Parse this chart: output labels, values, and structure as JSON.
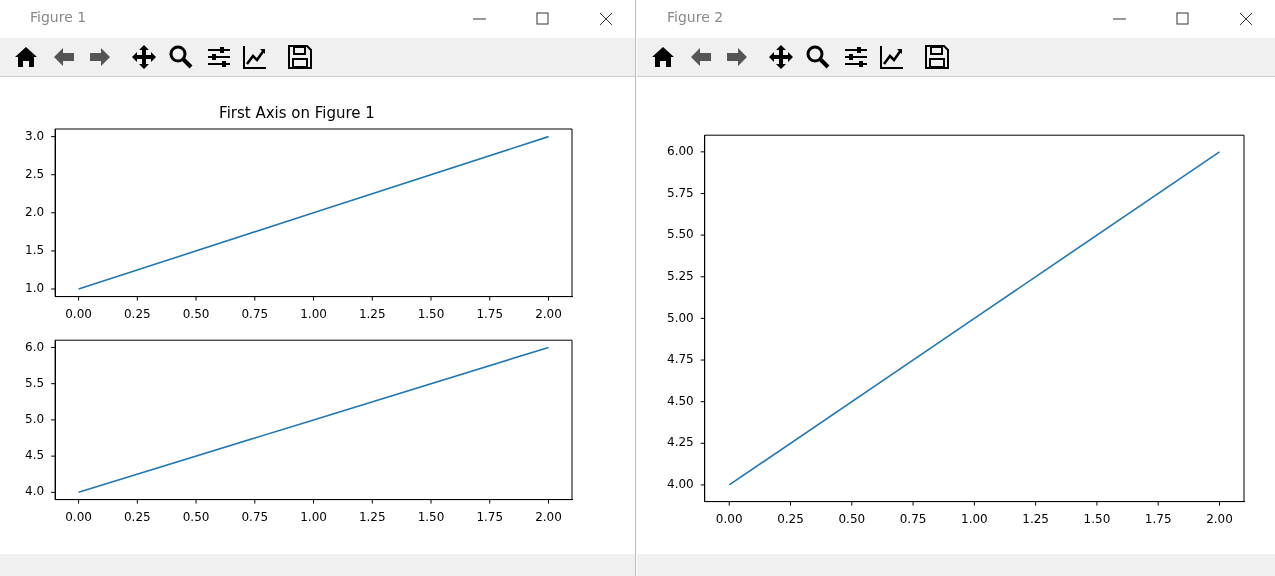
{
  "chart_data": [
    {
      "type": "line",
      "title": "First Axis on Figure 1",
      "annotations": [
        "Figure 1"
      ],
      "x": [
        0,
        1,
        2
      ],
      "series": [
        {
          "color": "#1f77b4",
          "values": [
            1,
            2,
            3
          ]
        }
      ],
      "xlim": [
        -0.1,
        2.1
      ],
      "xticks": [
        {
          "value": 0,
          "label": "0.00"
        },
        {
          "value": 0.25,
          "label": "0.25"
        },
        {
          "value": 0.5,
          "label": "0.50"
        },
        {
          "value": 0.75,
          "label": "0.75"
        },
        {
          "value": 1,
          "label": "1.00"
        },
        {
          "value": 1.25,
          "label": "1.25"
        },
        {
          "value": 1.5,
          "label": "1.50"
        },
        {
          "value": 1.75,
          "label": "1.75"
        },
        {
          "value": 2,
          "label": "2.00"
        }
      ],
      "ylim": [
        0.9,
        3.1
      ],
      "yticks": [
        {
          "value": 1,
          "label": "1.0"
        },
        {
          "value": 1.5,
          "label": "1.5"
        },
        {
          "value": 2,
          "label": "2.0"
        },
        {
          "value": 2.5,
          "label": "2.5"
        },
        {
          "value": 3,
          "label": "3.0"
        }
      ]
    },
    {
      "type": "line",
      "x": [
        0,
        1,
        2
      ],
      "series": [
        {
          "color": "#1f77b4",
          "values": [
            4,
            5,
            6
          ]
        }
      ],
      "xlim": [
        -0.1,
        2.1
      ],
      "xticks": [
        {
          "value": 0,
          "label": "0.00"
        },
        {
          "value": 0.25,
          "label": "0.25"
        },
        {
          "value": 0.5,
          "label": "0.50"
        },
        {
          "value": 0.75,
          "label": "0.75"
        },
        {
          "value": 1,
          "label": "1.00"
        },
        {
          "value": 1.25,
          "label": "1.25"
        },
        {
          "value": 1.5,
          "label": "1.50"
        },
        {
          "value": 1.75,
          "label": "1.75"
        },
        {
          "value": 2,
          "label": "2.00"
        }
      ],
      "ylim": [
        3.9,
        6.1
      ],
      "yticks": [
        {
          "value": 4,
          "label": "4.0"
        },
        {
          "value": 4.5,
          "label": "4.5"
        },
        {
          "value": 5,
          "label": "5.0"
        },
        {
          "value": 5.5,
          "label": "5.5"
        },
        {
          "value": 6,
          "label": "6.0"
        }
      ]
    },
    {
      "type": "line",
      "annotations": [
        "Figure 2"
      ],
      "x": [
        0,
        1,
        2
      ],
      "series": [
        {
          "color": "#1f77b4",
          "values": [
            4,
            5,
            6
          ]
        }
      ],
      "xlim": [
        -0.1,
        2.1
      ],
      "xticks": [
        {
          "value": 0,
          "label": "0.00"
        },
        {
          "value": 0.25,
          "label": "0.25"
        },
        {
          "value": 0.5,
          "label": "0.50"
        },
        {
          "value": 0.75,
          "label": "0.75"
        },
        {
          "value": 1,
          "label": "1.00"
        },
        {
          "value": 1.25,
          "label": "1.25"
        },
        {
          "value": 1.5,
          "label": "1.50"
        },
        {
          "value": 1.75,
          "label": "1.75"
        },
        {
          "value": 2,
          "label": "2.00"
        }
      ],
      "ylim": [
        3.9,
        6.1
      ],
      "yticks": [
        {
          "value": 4,
          "label": "4.00"
        },
        {
          "value": 4.25,
          "label": "4.25"
        },
        {
          "value": 4.5,
          "label": "4.50"
        },
        {
          "value": 4.75,
          "label": "4.75"
        },
        {
          "value": 5,
          "label": "5.00"
        },
        {
          "value": 5.25,
          "label": "5.25"
        },
        {
          "value": 5.5,
          "label": "5.50"
        },
        {
          "value": 5.75,
          "label": "5.75"
        },
        {
          "value": 6,
          "label": "6.00"
        }
      ]
    }
  ]
}
